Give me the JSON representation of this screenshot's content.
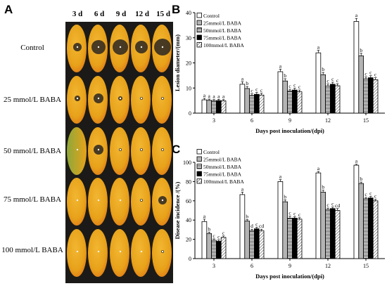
{
  "panels": {
    "a": "A",
    "b": "B",
    "c": "C"
  },
  "photo_grid": {
    "columns": [
      "3 d",
      "6 d",
      "9 d",
      "12 d",
      "15 d"
    ],
    "rows": [
      "Control",
      "25 mmol/L BABA",
      "50  mmol/L BABA",
      "75 mmol/L BABA",
      "100 mmol/L BABA"
    ]
  },
  "colors": {
    "fruit_yellow": "#e8a21a",
    "fruit_orange": "#e07a16",
    "fruit_green": "#8ea83a",
    "lesion": "#2a2622",
    "grid_background": "#1a1a1a"
  },
  "chart_data": [
    {
      "type": "bar",
      "panel": "B",
      "categories": [
        "3",
        "6",
        "9",
        "12",
        "15"
      ],
      "xlabel": "Days post inoculation/(dpi)",
      "ylabel": "Lesion diameter/(mm)",
      "ylim": [
        0,
        40
      ],
      "yticks": [
        "0",
        "10",
        "20",
        "30",
        "40"
      ],
      "legend_position": "top-left",
      "series": [
        {
          "name": "Control",
          "fill": "white",
          "values": [
            5.3,
            11.5,
            16.5,
            24.0,
            36.5
          ],
          "errors": [
            0.6,
            1.0,
            1.0,
            1.0,
            1.2
          ],
          "letters": [
            "a",
            "a",
            "a",
            "a",
            "a"
          ]
        },
        {
          "name": "25mmol/L BABA",
          "fill": "grey",
          "values": [
            5.1,
            9.8,
            12.8,
            15.3,
            22.8
          ],
          "errors": [
            0.5,
            0.8,
            0.9,
            0.9,
            1.0
          ],
          "letters": [
            "a",
            "b",
            "b",
            "b",
            "b"
          ]
        },
        {
          "name": "50mmol/L BABA",
          "fill": "hlines",
          "values": [
            4.9,
            7.0,
            8.8,
            10.8,
            13.6
          ],
          "errors": [
            0.5,
            0.7,
            0.7,
            0.8,
            0.8
          ],
          "letters": [
            "a",
            "c",
            "c",
            "c",
            "c"
          ]
        },
        {
          "name": "75mmol/L BABA",
          "fill": "black",
          "values": [
            5.0,
            7.5,
            9.2,
            11.5,
            14.1
          ],
          "errors": [
            0.5,
            0.7,
            0.7,
            0.8,
            0.8
          ],
          "letters": [
            "a",
            "c",
            "c",
            "c",
            "c"
          ]
        },
        {
          "name": "100mmol/L BABA",
          "fill": "diag",
          "values": [
            4.9,
            7.2,
            8.5,
            10.9,
            13.3
          ],
          "errors": [
            0.5,
            0.7,
            0.7,
            0.8,
            0.8
          ],
          "letters": [
            "a",
            "c",
            "c",
            "c",
            "c"
          ]
        }
      ]
    },
    {
      "type": "bar",
      "panel": "C",
      "categories": [
        "3",
        "6",
        "9",
        "12",
        "15"
      ],
      "xlabel": "Days post inoculation/(dpi)",
      "ylabel": "Disease incidence /(%)",
      "ylim": [
        0,
        100
      ],
      "yticks": [
        "0",
        "20",
        "40",
        "60",
        "80",
        "100"
      ],
      "legend_position": "top-left",
      "series": [
        {
          "name": "Control",
          "fill": "white",
          "values": [
            38.5,
            66.5,
            80.0,
            89.0,
            97.0
          ],
          "errors": [
            2.5,
            2.5,
            2.0,
            1.5,
            1.0
          ],
          "letters": [
            "a",
            "a",
            "a",
            "a",
            "a"
          ]
        },
        {
          "name": "25mmol/L BABA",
          "fill": "grey",
          "values": [
            26.0,
            39.0,
            59.0,
            69.0,
            78.0
          ],
          "errors": [
            1.5,
            1.5,
            2.0,
            2.0,
            1.5
          ],
          "letters": [
            "b",
            "b",
            "b",
            "b",
            "b"
          ]
        },
        {
          "name": "50mmol/L BABA",
          "fill": "hlines",
          "values": [
            19.0,
            29.0,
            42.0,
            51.0,
            62.0
          ],
          "errors": [
            1.5,
            1.5,
            2.0,
            1.5,
            1.5
          ],
          "letters": [
            "c",
            "d",
            "c",
            "c",
            "c"
          ]
        },
        {
          "name": "75mmol/L BABA",
          "fill": "black",
          "values": [
            18.0,
            31.0,
            42.0,
            52.0,
            63.0
          ],
          "errors": [
            1.5,
            1.5,
            1.5,
            1.5,
            1.5
          ],
          "letters": [
            "c",
            "c",
            "c",
            "c",
            "c"
          ]
        },
        {
          "name": "100mmol/L BABA",
          "fill": "diag",
          "values": [
            22.0,
            29.0,
            41.0,
            50.0,
            60.0
          ],
          "errors": [
            1.5,
            1.5,
            1.5,
            2.0,
            1.5
          ],
          "letters": [
            "c",
            "cd",
            "c",
            "cd",
            "c"
          ]
        }
      ]
    }
  ]
}
